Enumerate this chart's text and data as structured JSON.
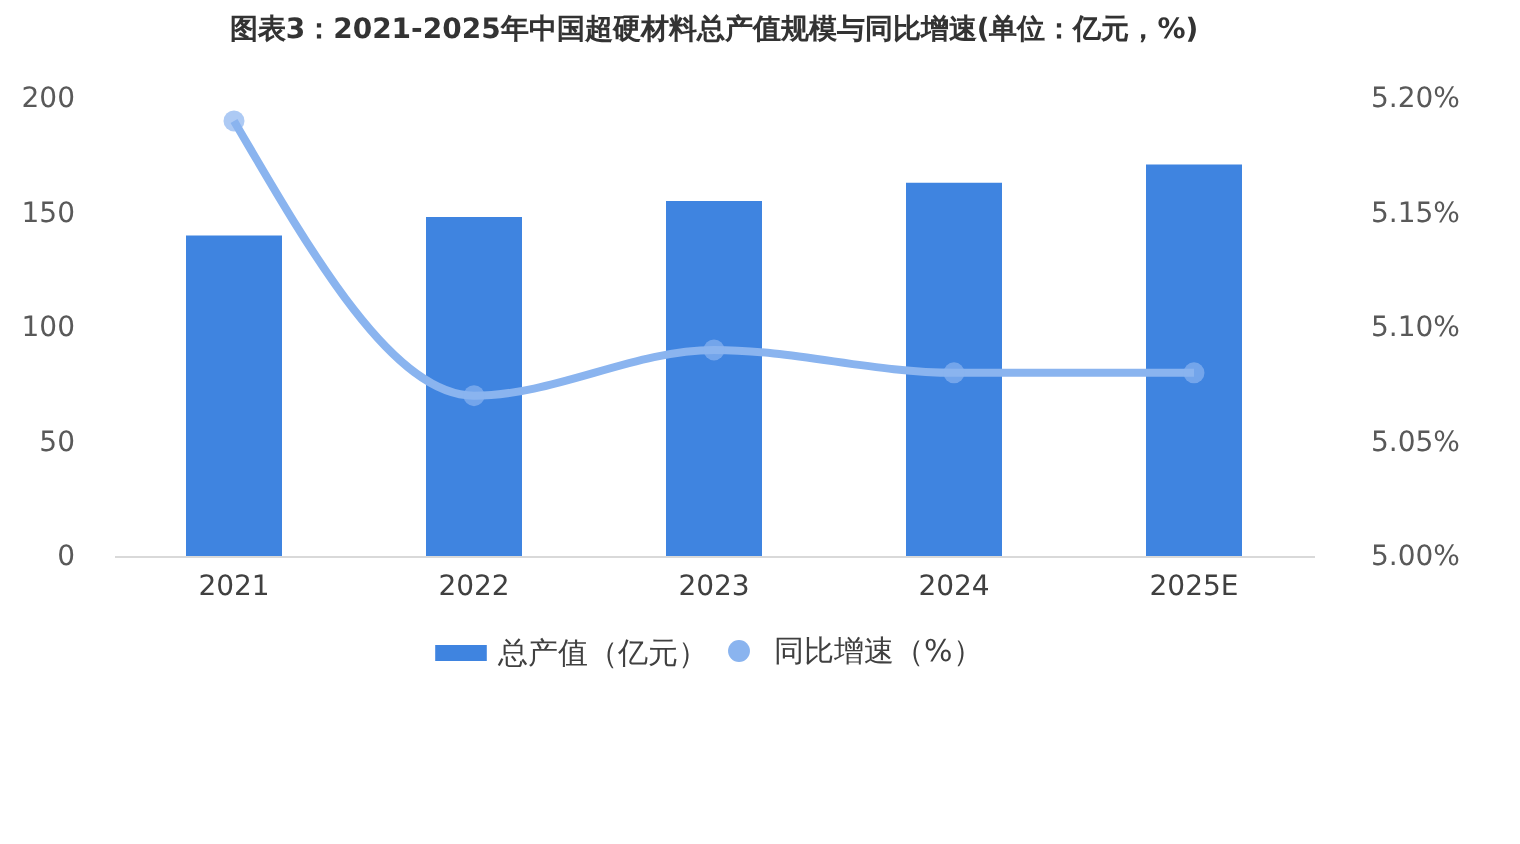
{
  "chart_data": {
    "type": "bar",
    "title": "图表3：2021-2025年中国超硬材料总产值规模与同比增速(单位：亿元，%)",
    "categories": [
      "2021",
      "2022",
      "2023",
      "2024",
      "2025E"
    ],
    "series": [
      {
        "name": "总产值（亿元）",
        "color": "#3f84e0",
        "values": [
          140,
          148,
          155,
          163,
          171
        ]
      },
      {
        "name": "同比增速（%）",
        "type": "line",
        "axis": "y2",
        "color": "#8ab4ef",
        "marker": "circle",
        "line_style": "solid",
        "values": [
          5.19,
          5.07,
          5.09,
          5.08,
          5.08
        ]
      }
    ],
    "ylim": [
      0,
      200
    ],
    "yticks": [
      0,
      50,
      100,
      150,
      200
    ],
    "y2lim": [
      5.0,
      5.2
    ],
    "y2ticks": [
      {
        "value": 5.0,
        "label": "5.00%"
      },
      {
        "value": 5.05,
        "label": "5.05%"
      },
      {
        "value": 5.1,
        "label": "5.10%"
      },
      {
        "value": 5.15,
        "label": "5.15%"
      },
      {
        "value": 5.2,
        "label": "5.20%"
      }
    ],
    "grid": false,
    "legend": "bottom"
  }
}
